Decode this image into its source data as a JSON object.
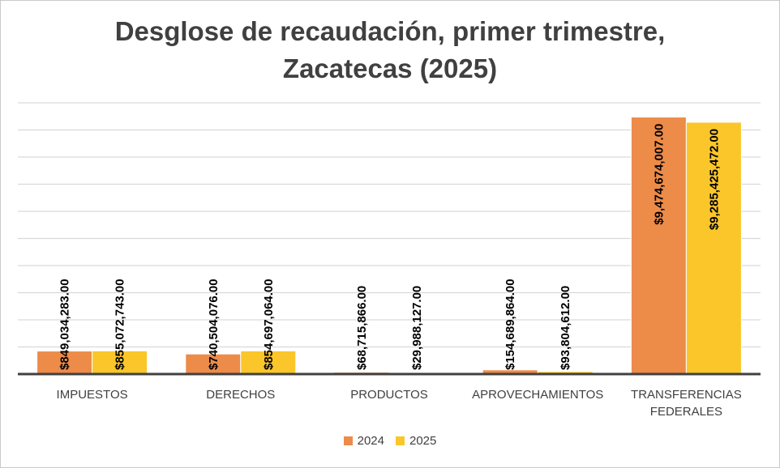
{
  "chart_data": {
    "type": "bar",
    "title": [
      "Desglose de recaudación, primer trimestre,",
      "Zacatecas (2025)"
    ],
    "categories": [
      [
        "IMPUESTOS"
      ],
      [
        "DERECHOS"
      ],
      [
        "PRODUCTOS"
      ],
      [
        "APROVECHAMIENTOS"
      ],
      [
        "TRANSFERENCIAS",
        "FEDERALES"
      ]
    ],
    "series": [
      {
        "name": "2024",
        "color": "#ED8B49",
        "values": [
          849034283,
          740504076,
          68715866,
          154689864,
          9474674007
        ],
        "labels": [
          "$849,034,283.00",
          "$740,504,076.00",
          "$68,715,866.00",
          "$154,689,864.00",
          "$9,474,674,007.00"
        ]
      },
      {
        "name": "2025",
        "color": "#FBC62A",
        "values": [
          855072743,
          854697064,
          29988127,
          93804612,
          9285425472
        ],
        "labels": [
          "$855,072,743.00",
          "$854,697,064.00",
          "$29,988,127.00",
          "$93,804,612.00",
          "$9,285,425,472.00"
        ]
      }
    ],
    "ylim": [
      0,
      10000000000
    ],
    "y_axis_labels_visible": false,
    "grid": true,
    "legend_position": "bottom"
  }
}
